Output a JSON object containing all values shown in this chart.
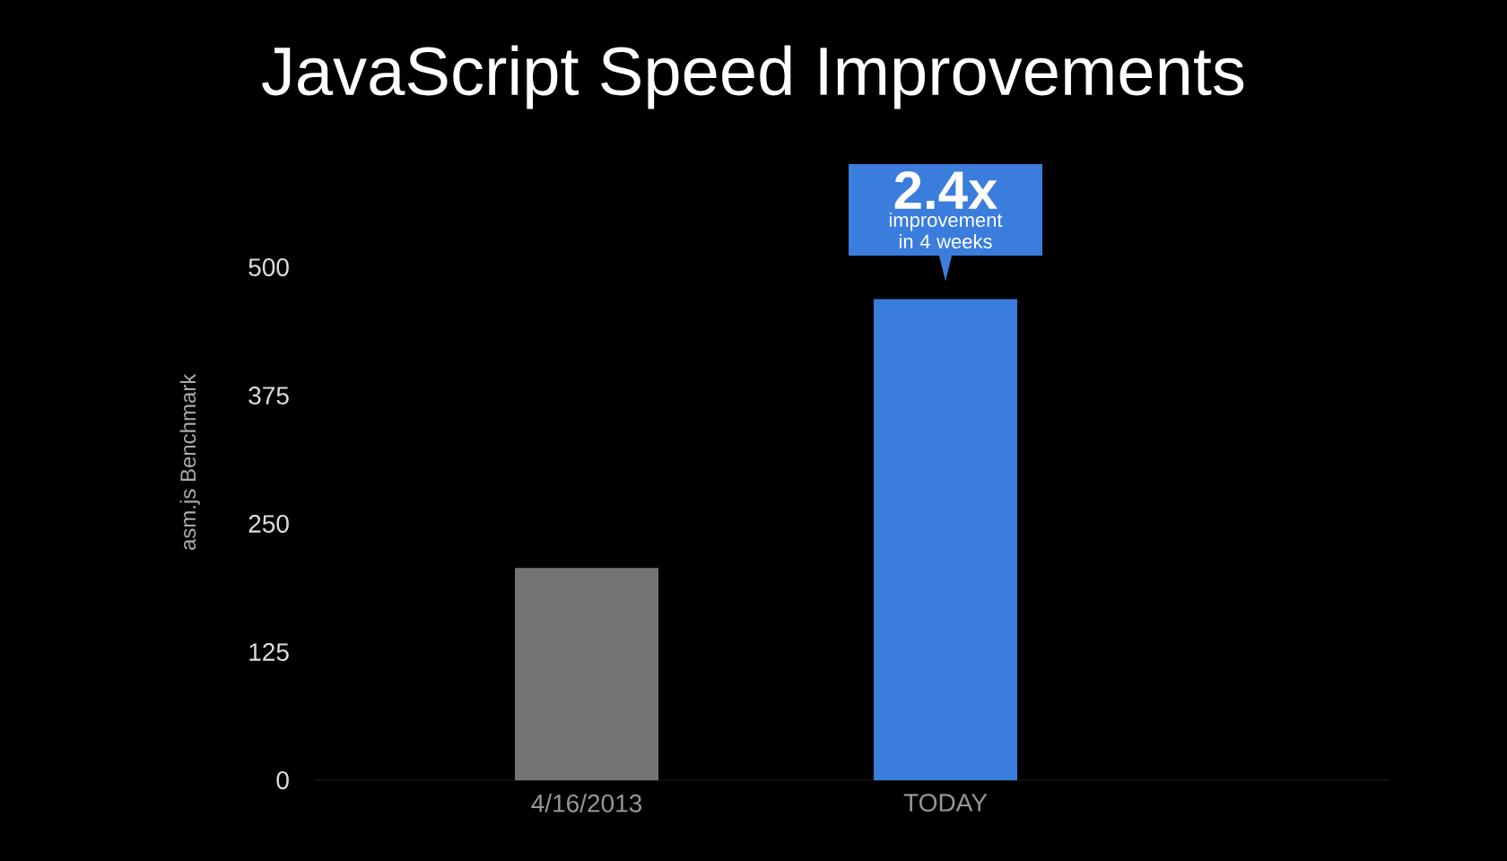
{
  "chart_data": {
    "type": "bar",
    "title": "JavaScript Speed Improvements",
    "ylabel": "asm.js Benchmark",
    "categories": [
      "4/16/2013",
      "TODAY"
    ],
    "values": [
      207,
      469
    ],
    "colors": [
      "#757575",
      "#3b7ddd"
    ],
    "ylim": [
      0,
      500
    ],
    "yticks": [
      0,
      125,
      250,
      375,
      500
    ],
    "annotations": [
      "2.4x",
      "improvement in 4 weeks"
    ]
  }
}
